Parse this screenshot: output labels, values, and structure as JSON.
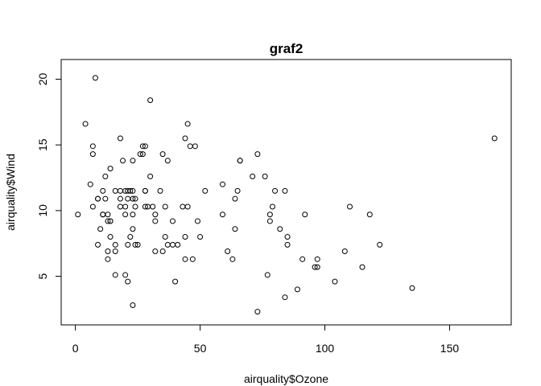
{
  "chart_data": {
    "type": "scatter",
    "title": "graf2",
    "xlabel": "airquality$Ozone",
    "ylabel": "airquality$Wind",
    "xlim": [
      -5.7,
      174.7
    ],
    "ylim": [
      1.3,
      21.5
    ],
    "xticks": [
      0,
      50,
      100,
      150
    ],
    "yticks": [
      5,
      10,
      15,
      20
    ],
    "grid": false,
    "point_style": "open-circle",
    "series": [
      {
        "points": [
          [
            41,
            7.4
          ],
          [
            36,
            8.0
          ],
          [
            12,
            12.6
          ],
          [
            18,
            11.5
          ],
          [
            28,
            14.9
          ],
          [
            23,
            8.6
          ],
          [
            19,
            13.8
          ],
          [
            8,
            20.1
          ],
          [
            7,
            14.3
          ],
          [
            16,
            6.9
          ],
          [
            11,
            9.7
          ],
          [
            14,
            9.2
          ],
          [
            18,
            10.9
          ],
          [
            14,
            13.2
          ],
          [
            34,
            11.5
          ],
          [
            6,
            12.0
          ],
          [
            30,
            18.4
          ],
          [
            11,
            11.5
          ],
          [
            1,
            9.7
          ],
          [
            11,
            9.7
          ],
          [
            4,
            16.6
          ],
          [
            32,
            9.7
          ],
          [
            23,
            9.7
          ],
          [
            45,
            16.6
          ],
          [
            115,
            5.7
          ],
          [
            37,
            7.4
          ],
          [
            29,
            10.3
          ],
          [
            71,
            12.6
          ],
          [
            39,
            9.2
          ],
          [
            23,
            10.9
          ],
          [
            21,
            11.5
          ],
          [
            37,
            13.8
          ],
          [
            20,
            11.5
          ],
          [
            12,
            10.9
          ],
          [
            13,
            9.2
          ],
          [
            135,
            4.1
          ],
          [
            49,
            9.2
          ],
          [
            32,
            9.2
          ],
          [
            64,
            10.9
          ],
          [
            40,
            4.6
          ],
          [
            77,
            5.1
          ],
          [
            97,
            6.3
          ],
          [
            97,
            5.7
          ],
          [
            85,
            7.4
          ],
          [
            10,
            8.6
          ],
          [
            27,
            14.3
          ],
          [
            7,
            14.9
          ],
          [
            48,
            14.9
          ],
          [
            35,
            14.3
          ],
          [
            61,
            6.9
          ],
          [
            79,
            10.3
          ],
          [
            63,
            6.3
          ],
          [
            16,
            5.1
          ],
          [
            80,
            11.5
          ],
          [
            108,
            6.9
          ],
          [
            20,
            9.7
          ],
          [
            52,
            11.5
          ],
          [
            82,
            8.6
          ],
          [
            50,
            8.0
          ],
          [
            64,
            8.6
          ],
          [
            59,
            12.0
          ],
          [
            39,
            7.4
          ],
          [
            9,
            7.4
          ],
          [
            16,
            7.4
          ],
          [
            78,
            9.2
          ],
          [
            35,
            6.9
          ],
          [
            66,
            13.8
          ],
          [
            122,
            7.4
          ],
          [
            89,
            4.0
          ],
          [
            110,
            10.3
          ],
          [
            44,
            8.0
          ],
          [
            28,
            11.5
          ],
          [
            65,
            11.5
          ],
          [
            22,
            11.5
          ],
          [
            59,
            9.7
          ],
          [
            23,
            11.5
          ],
          [
            31,
            10.3
          ],
          [
            44,
            6.3
          ],
          [
            21,
            7.4
          ],
          [
            9,
            10.9
          ],
          [
            45,
            10.3
          ],
          [
            168,
            15.5
          ],
          [
            73,
            14.3
          ],
          [
            76,
            12.6
          ],
          [
            118,
            9.7
          ],
          [
            84,
            3.4
          ],
          [
            85,
            8.0
          ],
          [
            96,
            5.7
          ],
          [
            78,
            9.7
          ],
          [
            73,
            2.3
          ],
          [
            91,
            6.3
          ],
          [
            47,
            6.3
          ],
          [
            32,
            6.9
          ],
          [
            20,
            5.1
          ],
          [
            23,
            2.8
          ],
          [
            21,
            4.6
          ],
          [
            24,
            7.4
          ],
          [
            44,
            15.5
          ],
          [
            21,
            10.9
          ],
          [
            28,
            10.3
          ],
          [
            9,
            10.9
          ],
          [
            13,
            9.7
          ],
          [
            46,
            14.9
          ],
          [
            18,
            15.5
          ],
          [
            13,
            6.3
          ],
          [
            24,
            10.9
          ],
          [
            16,
            11.5
          ],
          [
            13,
            6.9
          ],
          [
            23,
            13.8
          ],
          [
            36,
            10.3
          ],
          [
            7,
            10.3
          ],
          [
            14,
            8.0
          ],
          [
            30,
            12.6
          ],
          [
            14,
            9.2
          ],
          [
            18,
            10.3
          ],
          [
            20,
            10.3
          ],
          [
            27,
            14.9
          ],
          [
            26,
            14.3
          ],
          [
            25,
            7.4
          ],
          [
            22,
            8.0
          ],
          [
            66,
            13.8
          ],
          [
            24,
            10.3
          ],
          [
            92,
            9.7
          ],
          [
            28,
            11.5
          ],
          [
            43,
            10.3
          ],
          [
            104,
            4.6
          ],
          [
            84,
            11.5
          ]
        ]
      }
    ]
  }
}
